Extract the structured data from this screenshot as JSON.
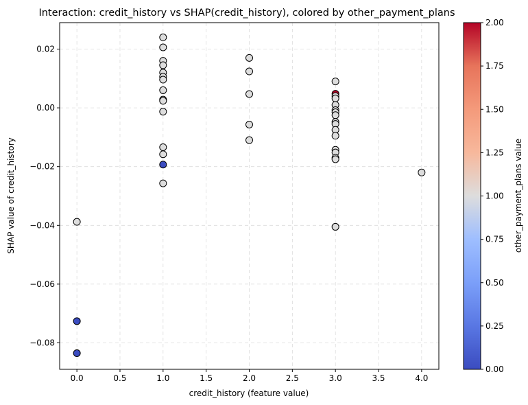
{
  "chart_data": {
    "type": "scatter",
    "title": "Interaction: credit_history vs SHAP(credit_history), colored by other_payment_plans",
    "xlabel": "credit_history (feature value)",
    "ylabel": "SHAP value of credit_history",
    "colorbar_label": "other_payment_plans value",
    "xlim": [
      -0.2,
      4.2
    ],
    "ylim": [
      -0.089,
      0.029
    ],
    "xticks": [
      0.0,
      0.5,
      1.0,
      1.5,
      2.0,
      2.5,
      3.0,
      3.5,
      4.0
    ],
    "xtick_labels": [
      "0.0",
      "0.5",
      "1.0",
      "1.5",
      "2.0",
      "2.5",
      "3.0",
      "3.5",
      "4.0"
    ],
    "yticks": [
      -0.08,
      -0.06,
      -0.04,
      -0.02,
      0.0,
      0.02
    ],
    "ytick_labels": [
      "−0.08",
      "−0.06",
      "−0.04",
      "−0.02",
      "0.00",
      "0.02"
    ],
    "colorbar_range": [
      0.0,
      2.0
    ],
    "colorbar_ticks": [
      0.0,
      0.25,
      0.5,
      0.75,
      1.0,
      1.25,
      1.5,
      1.75,
      2.0
    ],
    "colorbar_tick_labels": [
      "0.00",
      "0.25",
      "0.50",
      "0.75",
      "1.00",
      "1.25",
      "1.50",
      "1.75",
      "2.00"
    ],
    "colormap": "coolwarm",
    "grid": true,
    "points": [
      {
        "x": 0,
        "y": -0.0388,
        "c": 1
      },
      {
        "x": 0,
        "y": -0.0726,
        "c": 0
      },
      {
        "x": 0,
        "y": -0.0835,
        "c": 0
      },
      {
        "x": 1,
        "y": 0.024,
        "c": 1
      },
      {
        "x": 1,
        "y": 0.0206,
        "c": 1
      },
      {
        "x": 1,
        "y": 0.016,
        "c": 1
      },
      {
        "x": 1,
        "y": 0.0145,
        "c": 1
      },
      {
        "x": 1,
        "y": 0.012,
        "c": 1
      },
      {
        "x": 1,
        "y": 0.0106,
        "c": 1
      },
      {
        "x": 1,
        "y": 0.0096,
        "c": 1
      },
      {
        "x": 1,
        "y": 0.006,
        "c": 1
      },
      {
        "x": 1,
        "y": 0.0028,
        "c": 1
      },
      {
        "x": 1,
        "y": 0.0024,
        "c": 1
      },
      {
        "x": 1,
        "y": -0.0013,
        "c": 1
      },
      {
        "x": 1,
        "y": -0.0134,
        "c": 1
      },
      {
        "x": 1,
        "y": -0.0158,
        "c": 1
      },
      {
        "x": 1,
        "y": -0.0193,
        "c": 0
      },
      {
        "x": 1,
        "y": -0.0257,
        "c": 1
      },
      {
        "x": 2,
        "y": 0.017,
        "c": 1
      },
      {
        "x": 2,
        "y": 0.0124,
        "c": 1
      },
      {
        "x": 2,
        "y": 0.0047,
        "c": 1
      },
      {
        "x": 2,
        "y": -0.0057,
        "c": 1
      },
      {
        "x": 2,
        "y": -0.011,
        "c": 1
      },
      {
        "x": 3,
        "y": 0.009,
        "c": 1
      },
      {
        "x": 3,
        "y": 0.0048,
        "c": 2
      },
      {
        "x": 3,
        "y": 0.004,
        "c": 1
      },
      {
        "x": 3,
        "y": 0.0032,
        "c": 1
      },
      {
        "x": 3,
        "y": 0.001,
        "c": 1
      },
      {
        "x": 3,
        "y": -0.0008,
        "c": 1
      },
      {
        "x": 3,
        "y": -0.0015,
        "c": 1
      },
      {
        "x": 3,
        "y": -0.0025,
        "c": 1
      },
      {
        "x": 3,
        "y": -0.0048,
        "c": 1
      },
      {
        "x": 3,
        "y": -0.0055,
        "c": 1
      },
      {
        "x": 3,
        "y": -0.0075,
        "c": 1
      },
      {
        "x": 3,
        "y": -0.0095,
        "c": 1
      },
      {
        "x": 3,
        "y": -0.0143,
        "c": 1
      },
      {
        "x": 3,
        "y": -0.0152,
        "c": 1
      },
      {
        "x": 3,
        "y": -0.017,
        "c": 1
      },
      {
        "x": 3,
        "y": -0.0175,
        "c": 1
      },
      {
        "x": 3,
        "y": -0.0405,
        "c": 1
      },
      {
        "x": 4,
        "y": -0.022,
        "c": 1
      }
    ]
  }
}
